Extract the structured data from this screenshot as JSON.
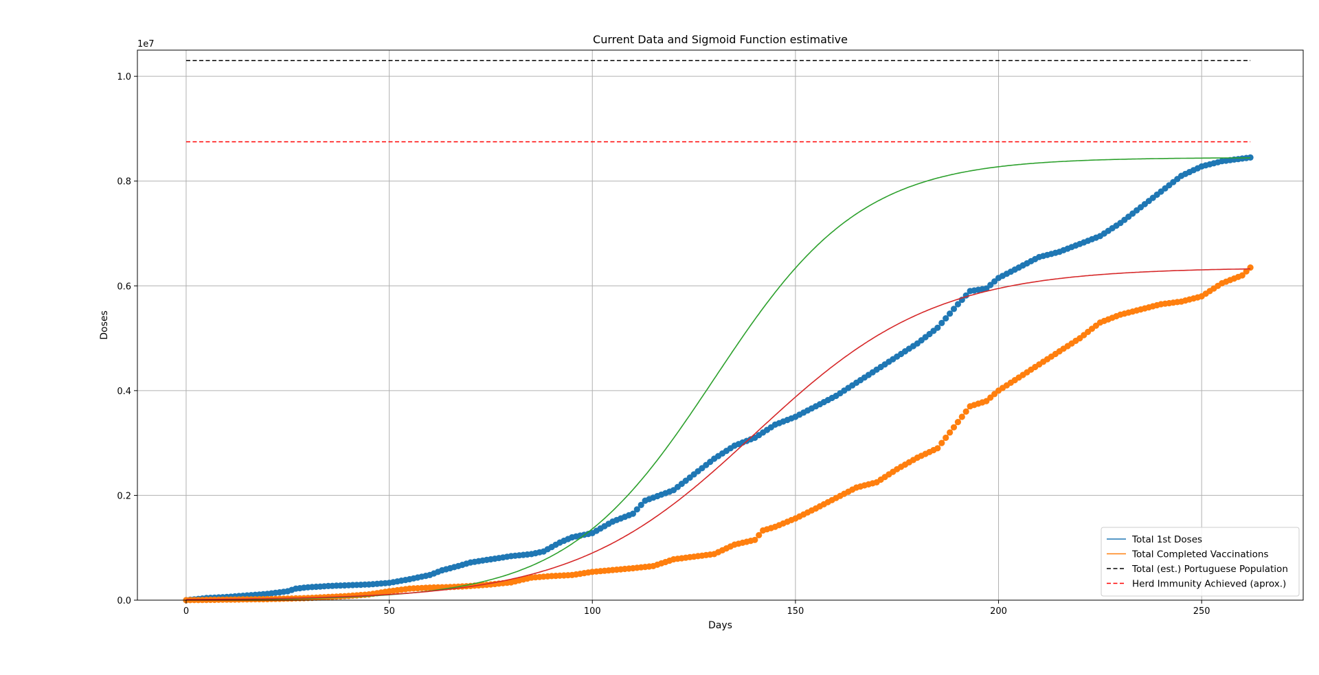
{
  "chart_data": {
    "type": "line",
    "title": "Current Data and Sigmoid Function estimative",
    "xlabel": "Days",
    "ylabel": "Doses",
    "y_offset_label": "1e7",
    "xlim": [
      -12,
      275
    ],
    "ylim": [
      0,
      10500000
    ],
    "x_ticks": [
      0,
      50,
      100,
      150,
      200,
      250
    ],
    "y_ticks": [
      0,
      2000000,
      4000000,
      6000000,
      8000000,
      10000000
    ],
    "y_tick_labels": [
      "0.0",
      "0.2",
      "0.4",
      "0.6",
      "0.8",
      "1.0"
    ],
    "grid": true,
    "legend_position": "lower-right",
    "colors": {
      "first_doses": "#1f77b4",
      "completed": "#ff7f0e",
      "sigmoid_first": "#2ca02c",
      "sigmoid_completed": "#d62728",
      "population": "#000000",
      "herd": "#ff0000"
    },
    "legend": [
      {
        "label": "Total 1st Doses",
        "color": "#1f77b4",
        "style": "solid"
      },
      {
        "label": "Total Completed Vaccinations",
        "color": "#ff7f0e",
        "style": "solid"
      },
      {
        "label": "Total (est.) Portuguese Population",
        "color": "#000000",
        "style": "dashed"
      },
      {
        "label": "Herd Immunity Achieved (aprox.)",
        "color": "#ff0000",
        "style": "dashed"
      }
    ],
    "series": [
      {
        "name": "Total 1st Doses",
        "kind": "scatter",
        "x_range": [
          0,
          262
        ],
        "anchors": [
          [
            0,
            0
          ],
          [
            5,
            40000
          ],
          [
            10,
            60000
          ],
          [
            15,
            90000
          ],
          [
            20,
            120000
          ],
          [
            25,
            170000
          ],
          [
            27,
            220000
          ],
          [
            30,
            245000
          ],
          [
            35,
            270000
          ],
          [
            40,
            285000
          ],
          [
            45,
            300000
          ],
          [
            50,
            330000
          ],
          [
            55,
            400000
          ],
          [
            60,
            480000
          ],
          [
            63,
            570000
          ],
          [
            67,
            650000
          ],
          [
            70,
            720000
          ],
          [
            75,
            780000
          ],
          [
            80,
            840000
          ],
          [
            85,
            880000
          ],
          [
            88,
            930000
          ],
          [
            92,
            1100000
          ],
          [
            95,
            1200000
          ],
          [
            100,
            1280000
          ],
          [
            105,
            1500000
          ],
          [
            110,
            1650000
          ],
          [
            113,
            1900000
          ],
          [
            120,
            2100000
          ],
          [
            125,
            2400000
          ],
          [
            130,
            2700000
          ],
          [
            135,
            2950000
          ],
          [
            140,
            3100000
          ],
          [
            145,
            3350000
          ],
          [
            150,
            3500000
          ],
          [
            155,
            3700000
          ],
          [
            160,
            3900000
          ],
          [
            165,
            4150000
          ],
          [
            170,
            4400000
          ],
          [
            175,
            4650000
          ],
          [
            180,
            4900000
          ],
          [
            185,
            5200000
          ],
          [
            190,
            5650000
          ],
          [
            193,
            5900000
          ],
          [
            197,
            5950000
          ],
          [
            200,
            6150000
          ],
          [
            205,
            6350000
          ],
          [
            210,
            6550000
          ],
          [
            215,
            6650000
          ],
          [
            220,
            6800000
          ],
          [
            225,
            6950000
          ],
          [
            230,
            7200000
          ],
          [
            235,
            7500000
          ],
          [
            240,
            7800000
          ],
          [
            245,
            8100000
          ],
          [
            250,
            8280000
          ],
          [
            255,
            8380000
          ],
          [
            262,
            8450000
          ]
        ]
      },
      {
        "name": "Total Completed Vaccinations",
        "kind": "scatter",
        "x_range": [
          0,
          262
        ],
        "anchors": [
          [
            0,
            0
          ],
          [
            10,
            10000
          ],
          [
            20,
            20000
          ],
          [
            30,
            40000
          ],
          [
            40,
            80000
          ],
          [
            45,
            110000
          ],
          [
            50,
            170000
          ],
          [
            55,
            220000
          ],
          [
            60,
            240000
          ],
          [
            65,
            250000
          ],
          [
            70,
            270000
          ],
          [
            75,
            300000
          ],
          [
            80,
            340000
          ],
          [
            85,
            430000
          ],
          [
            90,
            460000
          ],
          [
            95,
            480000
          ],
          [
            100,
            540000
          ],
          [
            110,
            610000
          ],
          [
            115,
            650000
          ],
          [
            120,
            780000
          ],
          [
            125,
            830000
          ],
          [
            130,
            880000
          ],
          [
            135,
            1060000
          ],
          [
            140,
            1150000
          ],
          [
            142,
            1330000
          ],
          [
            145,
            1400000
          ],
          [
            150,
            1560000
          ],
          [
            155,
            1750000
          ],
          [
            160,
            1950000
          ],
          [
            165,
            2150000
          ],
          [
            170,
            2250000
          ],
          [
            175,
            2500000
          ],
          [
            180,
            2720000
          ],
          [
            185,
            2900000
          ],
          [
            190,
            3400000
          ],
          [
            193,
            3700000
          ],
          [
            197,
            3800000
          ],
          [
            200,
            4000000
          ],
          [
            205,
            4250000
          ],
          [
            210,
            4500000
          ],
          [
            215,
            4750000
          ],
          [
            220,
            5000000
          ],
          [
            225,
            5300000
          ],
          [
            230,
            5450000
          ],
          [
            235,
            5550000
          ],
          [
            240,
            5650000
          ],
          [
            245,
            5700000
          ],
          [
            250,
            5800000
          ],
          [
            255,
            6050000
          ],
          [
            260,
            6200000
          ],
          [
            262,
            6350000
          ]
        ]
      },
      {
        "name": "",
        "kind": "sigmoid",
        "L": 8450000,
        "k": 0.055,
        "x0": 130,
        "x_range": [
          0,
          262
        ]
      },
      {
        "name": "",
        "kind": "sigmoid",
        "L": 6350000,
        "k": 0.045,
        "x0": 140,
        "x_range": [
          0,
          262
        ]
      },
      {
        "name": "Total (est.) Portuguese Population",
        "kind": "hline",
        "y": 10300000,
        "x_range": [
          0,
          262
        ]
      },
      {
        "name": "Herd Immunity Achieved (aprox.)",
        "kind": "hline",
        "y": 8750000,
        "x_range": [
          0,
          262
        ]
      }
    ]
  }
}
